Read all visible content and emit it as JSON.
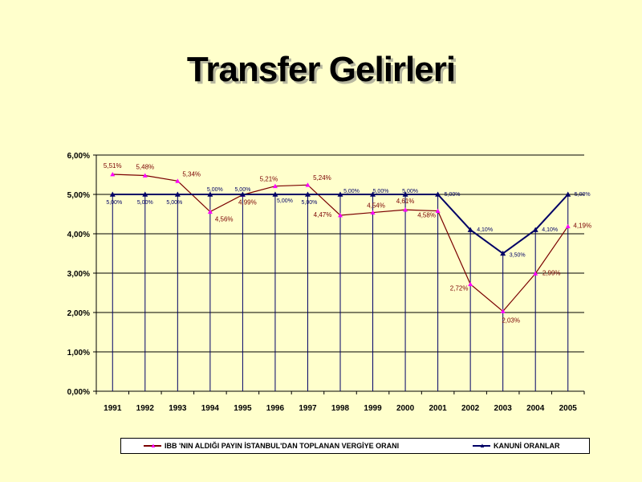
{
  "title": "Transfer Gelirleri",
  "chart_data": {
    "type": "line",
    "categories": [
      "1991",
      "1992",
      "1993",
      "1994",
      "1995",
      "1996",
      "1997",
      "1998",
      "1999",
      "2000",
      "2001",
      "2002",
      "2003",
      "2004",
      "2005"
    ],
    "y_tick_labels": [
      "0,00%",
      "1,00%",
      "2,00%",
      "3,00%",
      "4,00%",
      "5,00%",
      "6,00%"
    ],
    "ylim": [
      0,
      6
    ],
    "grid": "horizontal",
    "legend_position": "bottom",
    "series": [
      {
        "name": "IBB 'NIN ALDIĞI PAYIN İSTANBUL'DAN TOPLANAN VERGİYE ORANI",
        "values": [
          5.51,
          5.48,
          5.34,
          4.56,
          4.99,
          5.21,
          5.24,
          4.47,
          4.54,
          4.61,
          4.58,
          2.72,
          2.03,
          2.99,
          4.19
        ],
        "labels": [
          "5,51%",
          "5,48%",
          "5,34%",
          "4,56%",
          "4,99%",
          "5,21%",
          "5,24%",
          "4,47%",
          "4,54%",
          "4,61%",
          "4,58%",
          "2,72%",
          "2,03%",
          "2,99%",
          "4,19%"
        ],
        "color": "#7A0000",
        "marker_color": "#FF00FF"
      },
      {
        "name": "KANUNİ ORANLAR",
        "values": [
          5.0,
          5.0,
          5.0,
          5.0,
          5.0,
          5.0,
          5.0,
          5.0,
          5.0,
          5.0,
          5.0,
          4.1,
          3.5,
          4.1,
          5.0
        ],
        "labels": [
          "5,00%",
          "5,00%",
          "5,00%",
          "5,00%",
          "5,00%",
          "5,00%",
          "5,00%",
          "5,00%",
          "5,00%",
          "5,00%",
          "5,00%",
          "4,10%",
          "3,50%",
          "4,10%",
          "5,00%"
        ],
        "color": "#000066",
        "marker_color": "#000066"
      }
    ]
  }
}
